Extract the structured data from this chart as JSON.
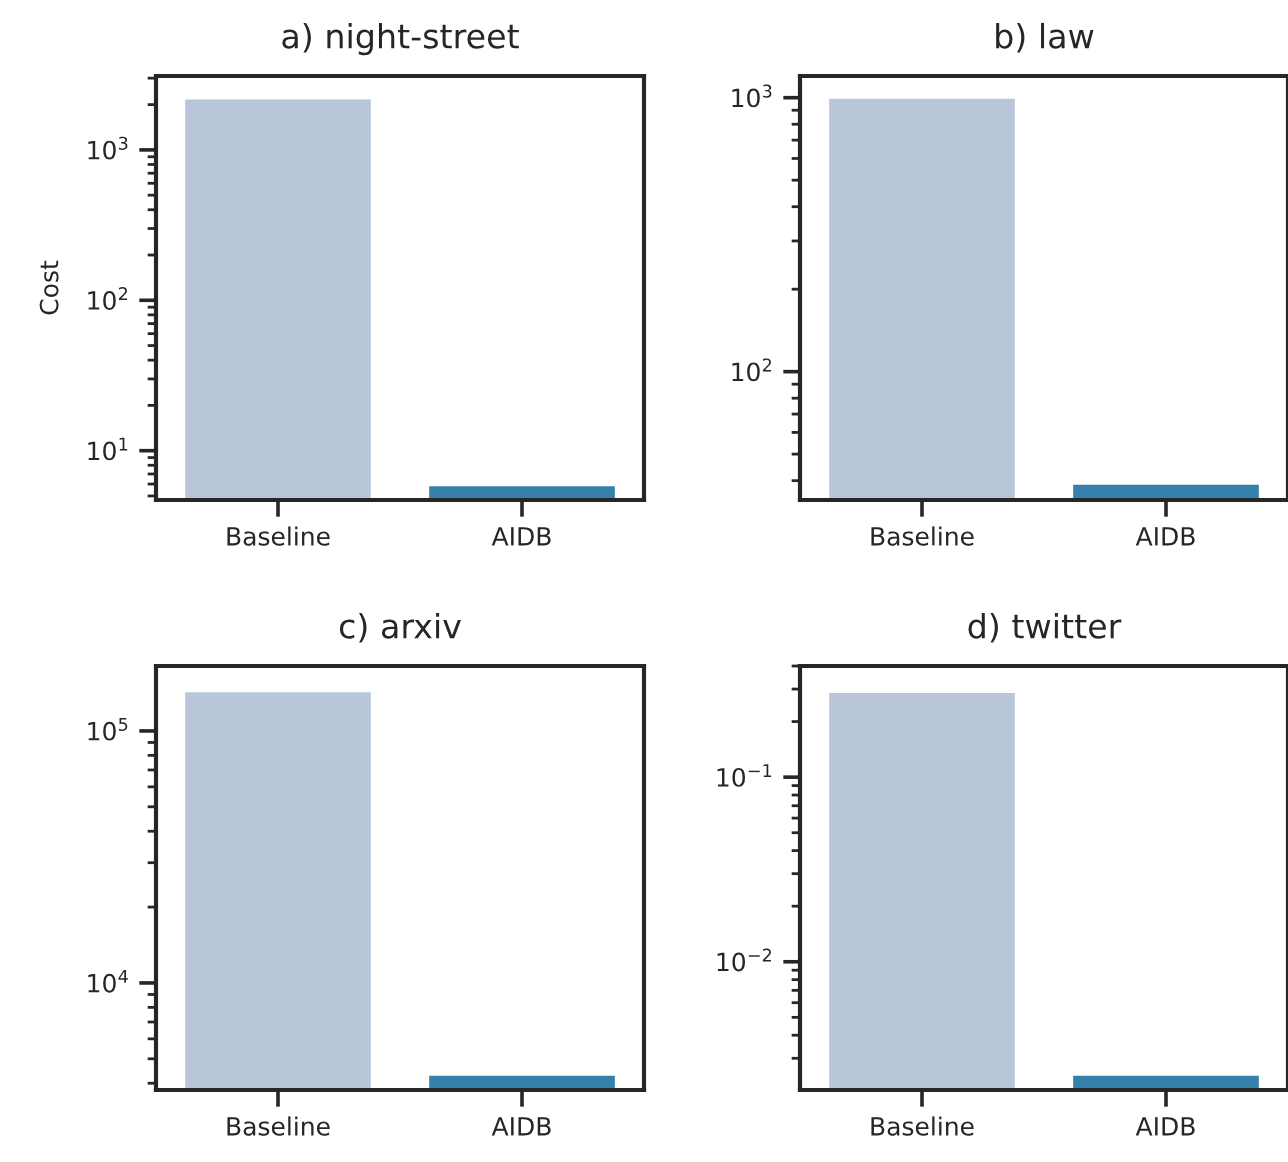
{
  "chart_data": [
    {
      "type": "bar",
      "title": "a) night-street",
      "ylabel": "Cost",
      "categories": [
        "Baseline",
        "AIDB"
      ],
      "values": [
        2200,
        5.9
      ],
      "colors": [
        "#b9c6da",
        "#3580ab"
      ],
      "log": "y",
      "ylim": [
        4.7,
        3100
      ],
      "yticks": [
        {
          "value": 10,
          "label": "10$^{1}$"
        },
        {
          "value": 100,
          "label": "10$^{2}$"
        },
        {
          "value": 1000,
          "label": "10$^{3}$"
        }
      ],
      "grid": false
    },
    {
      "type": "bar",
      "title": "b) law",
      "categories": [
        "Baseline",
        "AIDB"
      ],
      "values": [
        1000,
        39
      ],
      "colors": [
        "#b9c6da",
        "#3580ab"
      ],
      "log": "y",
      "ylim": [
        34,
        1200
      ],
      "yticks": [
        {
          "value": 100,
          "label": "10$^{2}$"
        },
        {
          "value": 1000,
          "label": "10$^{3}$"
        }
      ],
      "grid": false
    },
    {
      "type": "bar",
      "title": "c) arxiv",
      "categories": [
        "Baseline",
        "AIDB"
      ],
      "values": [
        144000,
        4330
      ],
      "colors": [
        "#b9c6da",
        "#3580ab"
      ],
      "log": "y",
      "ylim": [
        3760,
        181000
      ],
      "yticks": [
        {
          "value": 10000,
          "label": "10$^{4}$"
        },
        {
          "value": 100000,
          "label": "10$^{5}$"
        }
      ],
      "grid": false
    },
    {
      "type": "bar",
      "title": "d) twitter",
      "categories": [
        "Baseline",
        "AIDB"
      ],
      "values": [
        0.29,
        0.00245
      ],
      "colors": [
        "#b9c6da",
        "#3580ab"
      ],
      "log": "y",
      "ylim": [
        0.00202,
        0.4
      ],
      "yticks": [
        {
          "value": 0.01,
          "label": "10$^{−2}$"
        },
        {
          "value": 0.1,
          "label": "10$^{−1}$"
        }
      ],
      "grid": false
    }
  ]
}
